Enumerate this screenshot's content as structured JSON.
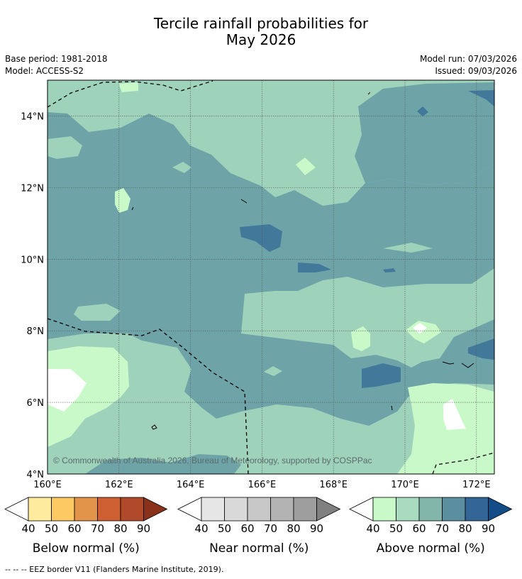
{
  "header": {
    "title_line1": "Tercile rainfall probabilities for",
    "title_line2": "May 2026",
    "base_period": "Base period: 1981-2018",
    "model": "Model: ACCESS-S2",
    "model_run": "Model run: 07/03/2026",
    "issued": "Issued: 09/03/2026"
  },
  "map": {
    "lat_range": [
      4,
      15
    ],
    "lon_range": [
      160,
      172.5
    ],
    "lat_ticks": [
      "4°N",
      "6°N",
      "8°N",
      "10°N",
      "12°N",
      "14°N"
    ],
    "lon_ticks": [
      "160°E",
      "162°E",
      "164°E",
      "166°E",
      "168°E",
      "170°E",
      "172°E"
    ],
    "copyright": "© Commonwealth of Australia 2026, Bureau of Meteorology, supported by COSPPac"
  },
  "colors": {
    "above_60": "#9fd2bb",
    "above_70": "#6ea4a8",
    "above_80": "#42799a",
    "above_40": "#c9f9c9",
    "white": "#ffffff"
  },
  "legends": [
    {
      "label": "Below normal (%)",
      "ticks": [
        "40",
        "50",
        "60",
        "70",
        "80",
        "90"
      ],
      "colors": [
        "#ffffff",
        "#ffeb9e",
        "#fdc962",
        "#e2944b",
        "#cd5f32",
        "#b04a2a",
        "#8a311b"
      ]
    },
    {
      "label": "Near normal (%)",
      "ticks": [
        "40",
        "50",
        "60",
        "70",
        "80",
        "90"
      ],
      "colors": [
        "#ffffff",
        "#e6e6e6",
        "#d9d9d9",
        "#c8c8c8",
        "#b3b3b3",
        "#9e9e9e",
        "#808080"
      ]
    },
    {
      "label": "Above normal (%)",
      "ticks": [
        "40",
        "50",
        "60",
        "70",
        "80",
        "90"
      ],
      "colors": [
        "#ffffff",
        "#c9f9c9",
        "#a8dbbf",
        "#82b6aa",
        "#5b8fa0",
        "#336596",
        "#144c88"
      ]
    }
  ],
  "footnote": "--  --  -- EEZ border V11 (Flanders Marine Institute, 2019)."
}
